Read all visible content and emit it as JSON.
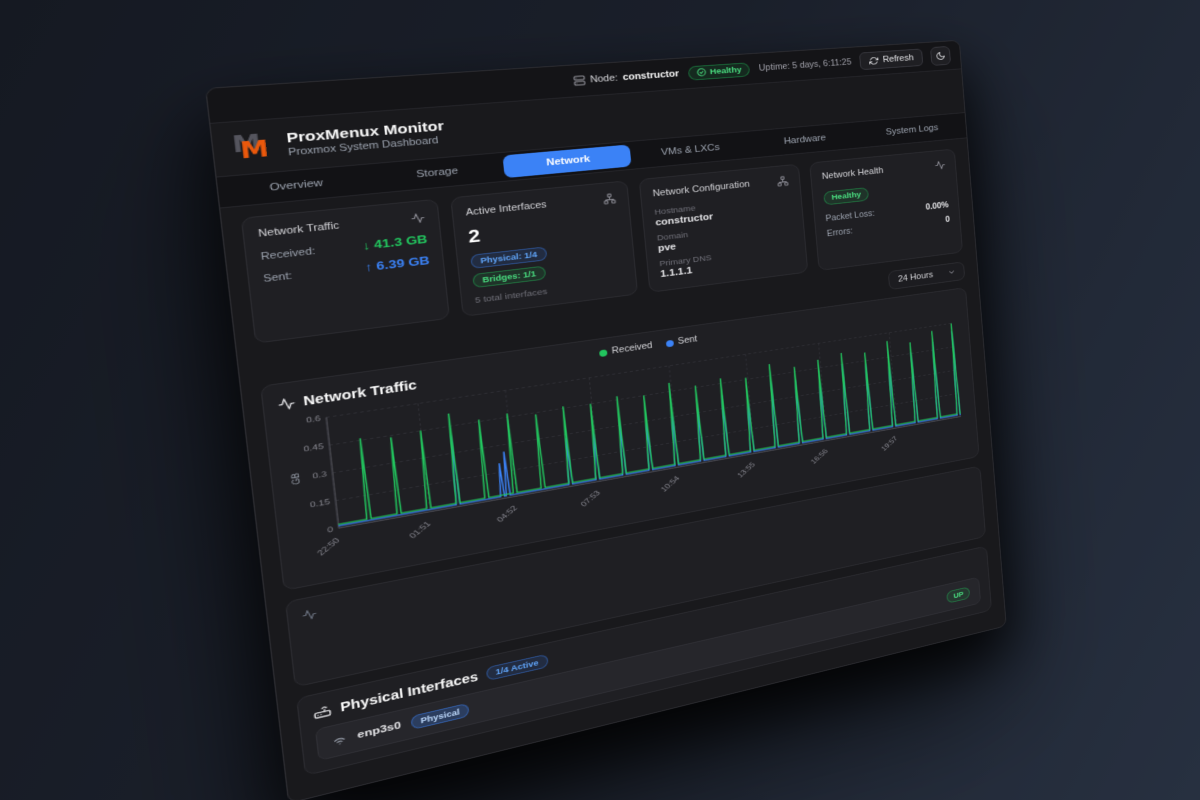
{
  "colors": {
    "accent_blue": "#3b82f6",
    "status_green": "#22c55e",
    "brand_orange": "#ea580c",
    "text_muted": "#9ca3af"
  },
  "topbar": {
    "node_label": "Node:",
    "node_value": "constructor",
    "health_badge": "Healthy",
    "uptime": "Uptime: 5 days, 6:11:25",
    "refresh_label": "Refresh"
  },
  "brand": {
    "logo_letter": "M",
    "title": "ProxMenux Monitor",
    "subtitle": "Proxmox System Dashboard"
  },
  "tabs": {
    "overview": "Overview",
    "storage": "Storage",
    "network": "Network",
    "vms": "VMs & LXCs",
    "hardware": "Hardware",
    "logs": "System Logs"
  },
  "stats": {
    "traffic": {
      "title": "Network Traffic",
      "received_label": "Received:",
      "received_arrow": "↓",
      "received_value": "41.3 GB",
      "sent_label": "Sent:",
      "sent_arrow": "↑",
      "sent_value": "6.39 GB"
    },
    "interfaces": {
      "title": "Active Interfaces",
      "count": "2",
      "badge_physical": "Physical: 1/4",
      "badge_bridges": "Bridges: 1/1",
      "total": "5 total interfaces"
    },
    "config": {
      "title": "Network Configuration",
      "hostname_label": "Hostname",
      "hostname": "constructor",
      "domain_label": "Domain",
      "domain": "pve",
      "dns_label": "Primary DNS",
      "dns": "1.1.1.1"
    },
    "health": {
      "title": "Network Health",
      "status_badge": "Healthy",
      "packet_loss_label": "Packet Loss:",
      "packet_loss": "0.00%",
      "errors_label": "Errors:",
      "errors": "0"
    }
  },
  "time_range": {
    "selected": "24 Hours"
  },
  "chart_card": {
    "title": "Network Traffic"
  },
  "chart_data": {
    "type": "line",
    "title": "Network Traffic",
    "ylabel": "GB",
    "ylim": [
      0,
      0.6
    ],
    "y_ticks": [
      0,
      0.15,
      0.3,
      0.45,
      0.6
    ],
    "x_ticks": [
      "22:50",
      "01:51",
      "04:52",
      "07:53",
      "10:54",
      "13:55",
      "16:56",
      "19:57"
    ],
    "x_tick_hours": [
      0,
      3.02,
      6.03,
      9.05,
      12.07,
      15.08,
      18.1,
      21.12
    ],
    "x_hours_total": 24,
    "grid": true,
    "legend_position": "top-center",
    "series": [
      {
        "name": "Received",
        "color": "#22c55e",
        "baseline": 0.02,
        "spikes": [
          [
            1,
            0.46
          ],
          [
            2,
            0.44
          ],
          [
            3,
            0.45
          ],
          [
            4,
            0.52
          ],
          [
            5,
            0.46
          ],
          [
            6,
            0.47
          ],
          [
            7,
            0.44
          ],
          [
            8,
            0.46
          ],
          [
            9,
            0.45
          ],
          [
            10,
            0.47
          ],
          [
            11,
            0.45
          ],
          [
            12,
            0.5
          ],
          [
            13,
            0.46
          ],
          [
            14,
            0.48
          ],
          [
            15,
            0.46
          ],
          [
            16,
            0.52
          ],
          [
            17,
            0.48
          ],
          [
            18,
            0.5
          ],
          [
            19,
            0.52
          ],
          [
            20,
            0.5
          ],
          [
            21,
            0.55
          ],
          [
            22,
            0.52
          ],
          [
            23,
            0.57
          ],
          [
            23.9,
            0.6
          ]
        ]
      },
      {
        "name": "Sent",
        "color": "#3b82f6",
        "baseline": 0.012,
        "spikes": [
          [
            4,
            0.4
          ],
          [
            5.55,
            0.2
          ],
          [
            5.75,
            0.26
          ],
          [
            8,
            0.28
          ],
          [
            9,
            0.3
          ],
          [
            10,
            0.33
          ],
          [
            11,
            0.3
          ],
          [
            12,
            0.36
          ],
          [
            13,
            0.33
          ],
          [
            14,
            0.38
          ],
          [
            15,
            0.36
          ],
          [
            16,
            0.42
          ],
          [
            17,
            0.4
          ],
          [
            18,
            0.43
          ],
          [
            19,
            0.45
          ],
          [
            20,
            0.43
          ],
          [
            21,
            0.48
          ],
          [
            22,
            0.46
          ],
          [
            23,
            0.5
          ],
          [
            23.9,
            0.55
          ]
        ]
      }
    ]
  },
  "physical": {
    "title": "Physical Interfaces",
    "active_badge": "1/4 Active",
    "row": {
      "name": "enp3s0",
      "type_badge": "Physical",
      "status_badge": "UP"
    }
  }
}
